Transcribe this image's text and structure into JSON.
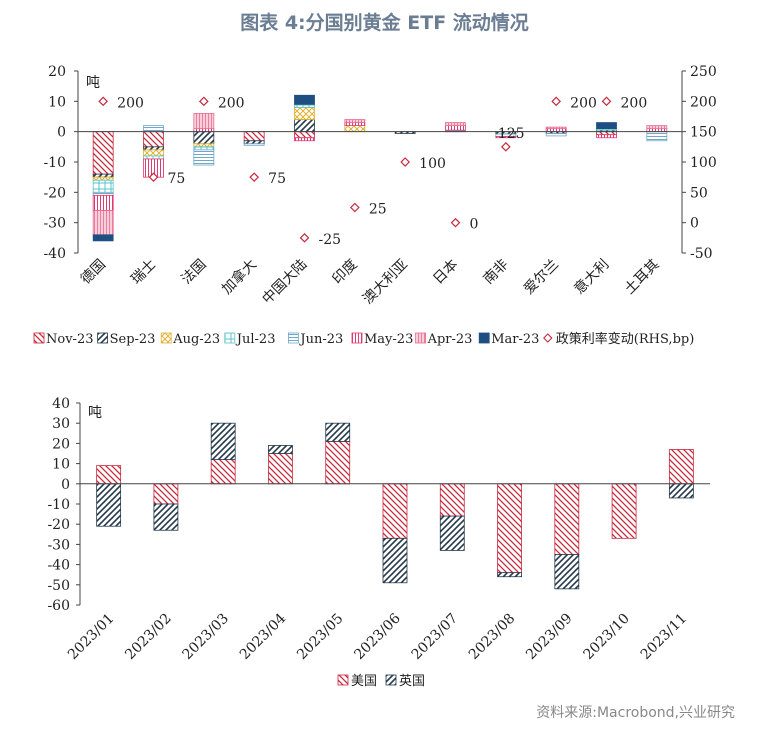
{
  "title": "图表 4:分国别黄金 ETF 流动情况",
  "source": "资料来源:Macrobond,兴业研究",
  "colors": {
    "nov": "#c8283c",
    "sep": "#253a4c",
    "aug": "#e0b030",
    "jul": "#58c4c8",
    "jun": "#6fa8c8",
    "may": "#e03a70",
    "apr": "#e86a90",
    "mar": "#1e4f82",
    "rhs": "#c8283c",
    "us": "#c8283c",
    "uk": "#253a4c"
  },
  "chart_data": [
    {
      "type": "bar",
      "stacked": true,
      "ylabel": "吨",
      "ylim": [
        -40,
        20
      ],
      "yticks": [
        -40,
        -30,
        -20,
        -10,
        0,
        10,
        20
      ],
      "y2lim": [
        -50,
        250
      ],
      "y2ticks": [
        -50,
        0,
        50,
        100,
        150,
        200,
        250
      ],
      "categories": [
        "德国",
        "瑞士",
        "法国",
        "加拿大",
        "中国大陆",
        "印度",
        "澳大利亚",
        "日本",
        "南非",
        "爱尔兰",
        "意大利",
        "土耳其"
      ],
      "series": [
        {
          "name": "Nov-23",
          "key": "nov",
          "values": [
            -14,
            -5,
            0,
            -3,
            -2,
            0,
            0,
            0,
            0,
            0,
            -1,
            0
          ]
        },
        {
          "name": "Sep-23",
          "key": "sep",
          "values": [
            -1,
            -1,
            -4,
            -1,
            4,
            0,
            -0.6,
            0.3,
            -0.8,
            -0.6,
            0.5,
            0
          ]
        },
        {
          "name": "Aug-23",
          "key": "aug",
          "values": [
            -1,
            -2,
            -1,
            0,
            4,
            2,
            0,
            0,
            0,
            0,
            0,
            0
          ]
        },
        {
          "name": "Jul-23",
          "key": "jul",
          "values": [
            -4,
            -1,
            -1,
            0,
            1,
            0,
            0,
            0,
            0,
            0,
            0.5,
            0
          ]
        },
        {
          "name": "Jun-23",
          "key": "jun",
          "values": [
            -1,
            2,
            -5,
            -0.5,
            0,
            0,
            0,
            0.2,
            -0.8,
            -0.8,
            0,
            -3
          ]
        },
        {
          "name": "May-23",
          "key": "may",
          "values": [
            -5,
            -6,
            1,
            0,
            -1,
            1,
            0,
            1.5,
            -0.4,
            1,
            -1,
            1
          ]
        },
        {
          "name": "Apr-23",
          "key": "apr",
          "values": [
            -8,
            0,
            5,
            0,
            0,
            1,
            0,
            1,
            0,
            0.5,
            0,
            1
          ]
        },
        {
          "name": "Mar-23",
          "key": "mar",
          "values": [
            -2,
            0,
            0,
            0,
            3,
            0,
            0,
            0,
            0,
            0,
            2,
            0
          ]
        }
      ],
      "rhs_series": {
        "name": "政策利率变动(RHS,bp)",
        "values": [
          200,
          75,
          200,
          75,
          -25,
          25,
          100,
          0,
          125,
          200,
          200,
          null
        ],
        "labels": [
          "200",
          "75",
          "200",
          "75",
          "-25",
          "25",
          "100",
          "0",
          "125",
          "200",
          "200",
          ""
        ]
      }
    },
    {
      "type": "bar",
      "stacked": true,
      "ylabel": "吨",
      "ylim": [
        -60,
        40
      ],
      "yticks": [
        -60,
        -50,
        -40,
        -30,
        -20,
        -10,
        0,
        10,
        20,
        30,
        40
      ],
      "categories": [
        "2023/01",
        "2023/02",
        "2023/03",
        "2023/04",
        "2023/05",
        "2023/06",
        "2023/07",
        "2023/08",
        "2023/09",
        "2023/10",
        "2023/11"
      ],
      "series": [
        {
          "name": "美国",
          "key": "us",
          "values": [
            9,
            -10,
            12,
            15,
            21,
            -27,
            -16,
            -44,
            -35,
            -27,
            17
          ]
        },
        {
          "name": "英国",
          "key": "uk",
          "values": [
            -21,
            -13,
            18,
            4,
            9,
            -22,
            -17,
            -2,
            -17,
            0,
            -7
          ]
        }
      ]
    }
  ]
}
